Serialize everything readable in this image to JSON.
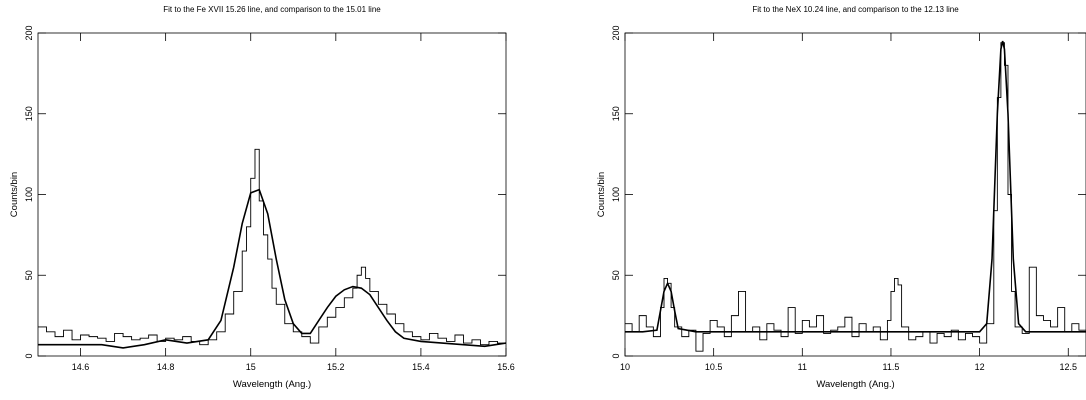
{
  "chart_data": [
    {
      "type": "line",
      "title": "Fit to the Fe XVII 15.26 line, and comparison to the 15.01 line",
      "xlabel": "Wavelength (Ang.)",
      "ylabel": "Counts/bin",
      "xlim": [
        14.5,
        15.6
      ],
      "ylim": [
        0,
        200
      ],
      "xticks": [
        "14.6",
        "14.8",
        "15",
        "15.2",
        "15.4",
        "15.6"
      ],
      "yticks": [
        "0",
        "50",
        "100",
        "150",
        "200"
      ],
      "grid": false,
      "series": [
        {
          "style": "histogram",
          "x": [
            14.5,
            14.52,
            14.54,
            14.56,
            14.58,
            14.6,
            14.62,
            14.64,
            14.66,
            14.68,
            14.7,
            14.72,
            14.74,
            14.76,
            14.78,
            14.8,
            14.82,
            14.84,
            14.86,
            14.88,
            14.9,
            14.92,
            14.94,
            14.96,
            14.98,
            14.99,
            15.0,
            15.01,
            15.02,
            15.03,
            15.04,
            15.05,
            15.06,
            15.08,
            15.1,
            15.12,
            15.14,
            15.16,
            15.18,
            15.2,
            15.22,
            15.24,
            15.25,
            15.26,
            15.27,
            15.28,
            15.3,
            15.32,
            15.34,
            15.36,
            15.38,
            15.4,
            15.42,
            15.44,
            15.46,
            15.48,
            15.5,
            15.52,
            15.54,
            15.56,
            15.58
          ],
          "values": [
            18,
            15,
            12,
            16,
            10,
            13,
            12,
            11,
            9,
            14,
            12,
            10,
            11,
            13,
            9,
            11,
            10,
            12,
            9,
            7,
            10,
            15,
            26,
            40,
            65,
            80,
            110,
            128,
            96,
            75,
            60,
            42,
            32,
            20,
            15,
            12,
            8,
            18,
            24,
            30,
            36,
            42,
            50,
            55,
            48,
            40,
            32,
            26,
            20,
            15,
            12,
            10,
            14,
            11,
            9,
            13,
            8,
            10,
            7,
            9,
            8
          ]
        },
        {
          "style": "model",
          "x": [
            14.5,
            14.55,
            14.6,
            14.65,
            14.7,
            14.75,
            14.8,
            14.85,
            14.9,
            14.93,
            14.96,
            14.98,
            15.0,
            15.02,
            15.04,
            15.06,
            15.08,
            15.1,
            15.12,
            15.14,
            15.16,
            15.18,
            15.2,
            15.22,
            15.24,
            15.26,
            15.28,
            15.3,
            15.32,
            15.34,
            15.36,
            15.4,
            15.45,
            15.5,
            15.55,
            15.6
          ],
          "values": [
            7,
            7,
            7,
            7,
            5,
            7,
            10,
            8,
            10,
            22,
            55,
            82,
            101,
            103,
            88,
            60,
            35,
            20,
            14,
            14,
            22,
            30,
            37,
            41,
            43,
            42,
            38,
            30,
            22,
            15,
            11,
            9,
            8,
            7,
            6,
            8
          ]
        }
      ]
    },
    {
      "type": "line",
      "title": "Fit to the NeX 10.24 line, and comparison to the 12.13 line",
      "xlabel": "Wavelength (Ang.)",
      "ylabel": "Counts/bin",
      "xlim": [
        10,
        12.6
      ],
      "ylim": [
        0,
        200
      ],
      "xticks": [
        "10",
        "10.5",
        "11",
        "11.5",
        "12",
        "12.5"
      ],
      "yticks": [
        "0",
        "50",
        "100",
        "150",
        "200"
      ],
      "grid": false,
      "series": [
        {
          "style": "histogram",
          "x": [
            10.0,
            10.04,
            10.08,
            10.12,
            10.16,
            10.2,
            10.22,
            10.24,
            10.26,
            10.28,
            10.32,
            10.36,
            10.4,
            10.44,
            10.48,
            10.52,
            10.56,
            10.6,
            10.64,
            10.68,
            10.72,
            10.76,
            10.8,
            10.84,
            10.88,
            10.92,
            10.96,
            11.0,
            11.04,
            11.08,
            11.12,
            11.16,
            11.2,
            11.24,
            11.28,
            11.32,
            11.36,
            11.4,
            11.44,
            11.48,
            11.5,
            11.52,
            11.54,
            11.56,
            11.6,
            11.64,
            11.68,
            11.72,
            11.76,
            11.8,
            11.84,
            11.88,
            11.92,
            11.96,
            12.0,
            12.04,
            12.08,
            12.1,
            12.12,
            12.14,
            12.16,
            12.18,
            12.2,
            12.24,
            12.28,
            12.32,
            12.36,
            12.4,
            12.44,
            12.48,
            12.52,
            12.56
          ],
          "values": [
            20,
            15,
            25,
            18,
            12,
            30,
            48,
            45,
            30,
            18,
            12,
            16,
            3,
            14,
            22,
            18,
            12,
            25,
            40,
            15,
            18,
            10,
            20,
            16,
            12,
            30,
            14,
            22,
            18,
            25,
            14,
            16,
            18,
            24,
            12,
            20,
            15,
            18,
            10,
            22,
            40,
            48,
            44,
            18,
            10,
            12,
            15,
            8,
            14,
            12,
            16,
            10,
            14,
            12,
            8,
            20,
            90,
            160,
            194,
            180,
            100,
            40,
            18,
            14,
            55,
            25,
            22,
            18,
            30,
            15,
            20,
            16
          ]
        },
        {
          "style": "model",
          "x": [
            10.0,
            10.1,
            10.18,
            10.2,
            10.22,
            10.24,
            10.26,
            10.28,
            10.3,
            10.4,
            11.0,
            12.0,
            12.04,
            12.07,
            12.1,
            12.12,
            12.13,
            12.14,
            12.16,
            12.19,
            12.22,
            12.26,
            12.3,
            12.6
          ],
          "values": [
            15,
            15,
            16,
            28,
            40,
            45,
            40,
            28,
            17,
            15,
            15,
            15,
            20,
            60,
            150,
            190,
            195,
            190,
            150,
            60,
            20,
            15,
            15,
            15
          ]
        }
      ]
    }
  ]
}
